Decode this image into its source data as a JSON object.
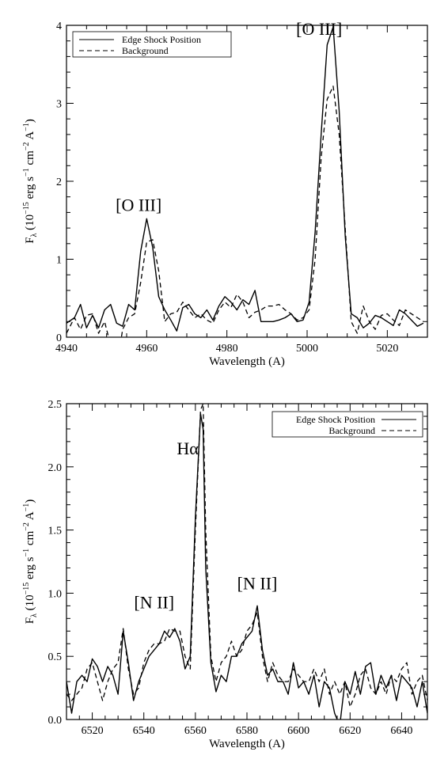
{
  "colors": {
    "line": "#000000",
    "background": "#ffffff"
  },
  "chart_data": [
    {
      "type": "line",
      "xlabel": "Wavelength (A)",
      "ylabel_parts": [
        "F",
        "λ",
        " (10",
        "−15",
        " erg s",
        "−1",
        " cm",
        "−2",
        " A",
        "−1",
        ")"
      ],
      "xlim": [
        4940,
        5030
      ],
      "ylim": [
        0,
        4
      ],
      "xticks": [
        4940,
        4960,
        4980,
        5000,
        5020
      ],
      "xtick_labels": [
        "4940",
        "4960",
        "4980",
        "5000",
        "5020"
      ],
      "yticks": [
        0,
        1,
        2,
        3,
        4
      ],
      "ytick_labels": [
        "0",
        "1",
        "2",
        "3",
        "4"
      ],
      "legend_position": "top-left",
      "annotations": [
        {
          "text": "[O III]",
          "x": 4958,
          "y": 1.62
        },
        {
          "text": "[O III]",
          "x": 5003,
          "y": 3.88
        }
      ],
      "series": [
        {
          "name": "Edge Shock Position",
          "style": "solid",
          "x": [
            4940,
            4942,
            4943.5,
            4945,
            4946.5,
            4948,
            4949.5,
            4951,
            4952.5,
            4954,
            4955.5,
            4957,
            4958.5,
            4960,
            4961.5,
            4963,
            4964.5,
            4966,
            4967.5,
            4969,
            4970.5,
            4972,
            4973.5,
            4975,
            4976.5,
            4978,
            4979.5,
            4981,
            4982.5,
            4984,
            4985.5,
            4987,
            4988.5,
            4990,
            4991.5,
            4993,
            4994.5,
            4996,
            4997.5,
            4999,
            5000.5,
            5002,
            5003.5,
            5005,
            5006.5,
            5008,
            5009.5,
            5011,
            5012.5,
            5014,
            5015.5,
            5017,
            5018.5,
            5020,
            5021.5,
            5023,
            5024.5,
            5026,
            5027.5,
            5029
          ],
          "y": [
            0.18,
            0.25,
            0.42,
            0.12,
            0.28,
            0.12,
            0.35,
            0.42,
            0.18,
            0.14,
            0.42,
            0.35,
            1.1,
            1.52,
            1.15,
            0.52,
            0.35,
            0.22,
            0.08,
            0.38,
            0.42,
            0.3,
            0.25,
            0.35,
            0.22,
            0.4,
            0.52,
            0.45,
            0.35,
            0.48,
            0.42,
            0.6,
            0.2,
            0.2,
            0.2,
            0.22,
            0.25,
            0.3,
            0.2,
            0.22,
            0.45,
            1.35,
            2.6,
            3.75,
            3.98,
            2.9,
            1.3,
            0.3,
            0.25,
            0.12,
            0.18,
            0.28,
            0.25,
            0.2,
            0.15,
            0.35,
            0.3,
            0.22,
            0.14,
            0.18
          ]
        },
        {
          "name": "Background",
          "style": "dashed",
          "x": [
            4940,
            4942,
            4943.5,
            4945,
            4946.5,
            4948,
            4949.5,
            4951,
            4952.5,
            4954,
            4955.5,
            4957,
            4958.5,
            4960,
            4961.5,
            4963,
            4964.5,
            4966,
            4967.5,
            4969,
            4970.5,
            4972,
            4973.5,
            4975,
            4976.5,
            4978,
            4979.5,
            4981,
            4982.5,
            4984,
            4985.5,
            4987,
            4988.5,
            4990,
            4991.5,
            4993,
            4994.5,
            4996,
            4997.5,
            4999,
            5000.5,
            5002,
            5003.5,
            5005,
            5006.5,
            5008,
            5009.5,
            5011,
            5012.5,
            5014,
            5015.5,
            5017,
            5018.5,
            5020,
            5021.5,
            5023,
            5024.5,
            5026,
            5027.5,
            5029
          ],
          "y": [
            0.05,
            0.25,
            0.1,
            0.28,
            0.3,
            0.05,
            0.2,
            -0.1,
            -0.4,
            0.1,
            0.25,
            0.3,
            0.7,
            1.22,
            1.25,
            0.85,
            0.2,
            0.3,
            0.32,
            0.45,
            0.35,
            0.25,
            0.3,
            0.22,
            0.18,
            0.35,
            0.45,
            0.38,
            0.55,
            0.45,
            0.25,
            0.32,
            0.35,
            0.4,
            0.4,
            0.42,
            0.35,
            0.3,
            0.22,
            0.25,
            0.35,
            1.0,
            2.3,
            3.05,
            3.22,
            2.6,
            1.4,
            0.2,
            0.05,
            0.4,
            0.2,
            0.1,
            0.28,
            0.3,
            0.22,
            0.15,
            0.35,
            0.3,
            0.25,
            0.2
          ]
        }
      ]
    },
    {
      "type": "line",
      "xlabel": "Wavelength (A)",
      "ylabel_parts": [
        "F",
        "λ",
        " (10",
        "−15",
        " erg s",
        "−1",
        " cm",
        "−2",
        " A",
        "−1",
        ")"
      ],
      "xlim": [
        6510,
        6650
      ],
      "ylim": [
        0,
        2.5
      ],
      "xticks": [
        6520,
        6540,
        6560,
        6580,
        6600,
        6620,
        6640
      ],
      "xtick_labels": [
        "6520",
        "6540",
        "6560",
        "6580",
        "6600",
        "6620",
        "6640"
      ],
      "yticks": [
        0,
        0.5,
        1.0,
        1.5,
        2.0,
        2.5
      ],
      "ytick_labels": [
        "0.0",
        "0.5",
        "1.0",
        "1.5",
        "2.0",
        "2.5"
      ],
      "legend_position": "top-right",
      "annotations": [
        {
          "text": "Hα",
          "x": 6557,
          "y": 2.1
        },
        {
          "text": "[N II]",
          "x": 6544,
          "y": 0.88
        },
        {
          "text": "[N II]",
          "x": 6584,
          "y": 1.03
        }
      ],
      "series": [
        {
          "name": "Edge Shock Position",
          "style": "solid",
          "x": [
            6510,
            6512,
            6514,
            6516,
            6518,
            6520,
            6522,
            6524,
            6526,
            6528,
            6530,
            6532,
            6534,
            6536,
            6538,
            6540,
            6542,
            6544,
            6546,
            6548,
            6550,
            6552,
            6554,
            6556,
            6558,
            6560,
            6562,
            6563,
            6564,
            6566,
            6568,
            6570,
            6572,
            6574,
            6576,
            6578,
            6580,
            6582,
            6584,
            6586,
            6588,
            6590,
            6592,
            6594,
            6596,
            6598,
            6600,
            6602,
            6604,
            6606,
            6608,
            6610,
            6612,
            6614,
            6616,
            6618,
            6620,
            6622,
            6624,
            6626,
            6628,
            6630,
            6632,
            6634,
            6636,
            6638,
            6640,
            6642,
            6644,
            6646,
            6648,
            6650
          ],
          "y": [
            0.3,
            0.05,
            0.3,
            0.35,
            0.3,
            0.48,
            0.42,
            0.3,
            0.42,
            0.35,
            0.2,
            0.7,
            0.45,
            0.15,
            0.3,
            0.4,
            0.5,
            0.55,
            0.6,
            0.7,
            0.65,
            0.72,
            0.62,
            0.4,
            0.5,
            1.6,
            2.42,
            2.3,
            1.2,
            0.45,
            0.22,
            0.35,
            0.3,
            0.5,
            0.5,
            0.6,
            0.65,
            0.7,
            0.9,
            0.55,
            0.35,
            0.4,
            0.3,
            0.3,
            0.2,
            0.45,
            0.25,
            0.3,
            0.2,
            0.35,
            0.1,
            0.3,
            0.25,
            0.05,
            -0.05,
            0.3,
            0.2,
            0.38,
            0.2,
            0.42,
            0.45,
            0.2,
            0.35,
            0.25,
            0.35,
            0.15,
            0.35,
            0.3,
            0.25,
            0.1,
            0.3,
            0.05
          ]
        },
        {
          "name": "Background",
          "style": "dashed",
          "x": [
            6510,
            6512,
            6514,
            6516,
            6518,
            6520,
            6522,
            6524,
            6526,
            6528,
            6530,
            6532,
            6534,
            6536,
            6538,
            6540,
            6542,
            6544,
            6546,
            6548,
            6550,
            6552,
            6554,
            6556,
            6558,
            6560,
            6562,
            6563,
            6564,
            6566,
            6568,
            6570,
            6572,
            6574,
            6576,
            6578,
            6580,
            6582,
            6584,
            6586,
            6588,
            6590,
            6592,
            6594,
            6596,
            6598,
            6600,
            6602,
            6604,
            6606,
            6608,
            6610,
            6612,
            6614,
            6616,
            6618,
            6620,
            6622,
            6624,
            6626,
            6628,
            6630,
            6632,
            6634,
            6636,
            6638,
            6640,
            6642,
            6644,
            6646,
            6648,
            6650
          ],
          "y": [
            0.2,
            0.15,
            0.2,
            0.25,
            0.4,
            0.45,
            0.3,
            0.15,
            0.3,
            0.4,
            0.45,
            0.72,
            0.4,
            0.2,
            0.25,
            0.45,
            0.55,
            0.6,
            0.6,
            0.62,
            0.72,
            0.7,
            0.7,
            0.5,
            0.4,
            1.5,
            2.45,
            2.5,
            1.5,
            0.5,
            0.3,
            0.45,
            0.5,
            0.62,
            0.5,
            0.55,
            0.7,
            0.75,
            0.85,
            0.5,
            0.3,
            0.45,
            0.35,
            0.3,
            0.3,
            0.4,
            0.35,
            0.3,
            0.3,
            0.4,
            0.3,
            0.4,
            0.2,
            0.3,
            0.2,
            0.3,
            0.1,
            0.2,
            0.35,
            0.4,
            0.25,
            0.2,
            0.3,
            0.2,
            0.35,
            0.3,
            0.4,
            0.45,
            0.2,
            0.3,
            0.35,
            0.15
          ]
        }
      ]
    }
  ]
}
